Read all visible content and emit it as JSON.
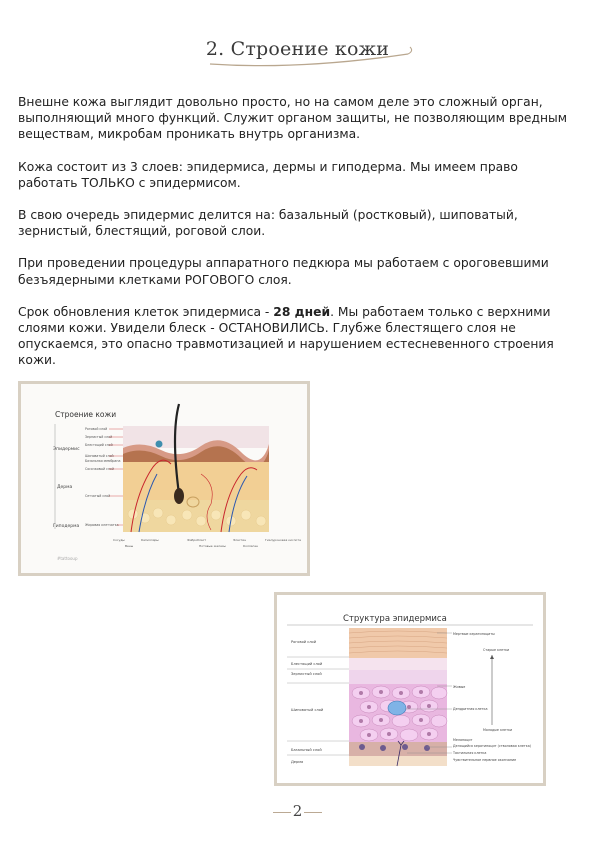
{
  "title": "2. Строение кожи",
  "paragraphs": [
    {
      "text": "Внешне кожа выглядит довольно просто, но на самом деле это сложный орган, выполняющий много функций. Служит органом защиты, не позволяющим вредным  веществам, микробам проникать внутрь организма."
    },
    {
      "text": "Кожа состоит из 3 слоев: эпидермиса, дермы и гиподерма.  Мы имеем право работать ТОЛЬКО с эпидермисом."
    },
    {
      "text": "В свою очередь эпидермис делится на: базальный (ростковый), шиповатый, зернистый,  блестящий, роговой слои."
    },
    {
      "text": "При проведении процедуры аппаратного педкюра мы работаем с ороговевшими  безъядерными клетками РОГОВОГО слоя."
    },
    {
      "pre": "Срок обновления клеток эпидермиса - ",
      "bold": "28 дней",
      "post": ". Мы работаем только с верхними слоями кожи. Увидели блеск - ОСТАНОВИЛИСЬ. Глубже блестящего слоя не опускаемся, это опасно травмотизацией и нарушением естесневенного строения кожи."
    }
  ],
  "figure1": {
    "title": "Строение кожи",
    "layer_labels": [
      "Эпидермис",
      "Дерма",
      "Гиподерма"
    ],
    "sublayer_labels": [
      "Роговой слой",
      "Зернистый слой",
      "Блестящий слой",
      "Шиповатый слой",
      "Базальная мембрана",
      "Сосочковый слой",
      "Сетчатый слой",
      "Жировая клетчатка"
    ],
    "bottom_labels": [
      "Сосуды",
      "Вены",
      "Капилляры",
      "Фибробласт",
      "Потовые железы",
      "Эластин",
      "Коллаген",
      "Гиалуроновая кислота"
    ],
    "watermark": "#tattooup"
  },
  "figure2": {
    "title": "Структура эпидермиса",
    "left_labels": [
      "Роговой слой",
      "Блестящий слой",
      "Зернистый слой",
      "Шиповатый слой",
      "Базальный слой",
      "Дерма"
    ],
    "right_labels": [
      "Мертвые кератиноциты",
      "Старые клетки",
      "Живые",
      "Дендритная клетка",
      "Молодые клетки",
      "Меланоцит",
      "Делящийся кератиноцит (стволовая клетка)",
      "Тактильная клетка",
      "Чувствительное нервное окончание"
    ]
  },
  "page_number": "2"
}
